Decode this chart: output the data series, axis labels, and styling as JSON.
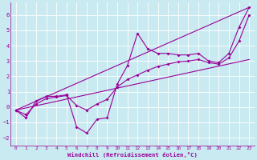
{
  "background_color": "#c8eaf0",
  "line_color": "#990099",
  "grid_color": "#ffffff",
  "xlabel": "Windchill (Refroidissement éolien,°C)",
  "xlim": [
    -0.5,
    23.5
  ],
  "ylim": [
    -2.5,
    6.8
  ],
  "yticks": [
    -2,
    -1,
    0,
    1,
    2,
    3,
    4,
    5,
    6
  ],
  "xticks": [
    0,
    1,
    2,
    3,
    4,
    5,
    6,
    7,
    8,
    9,
    10,
    11,
    12,
    13,
    14,
    15,
    16,
    17,
    18,
    19,
    20,
    21,
    22,
    23
  ],
  "series": [
    {
      "x": [
        0,
        1,
        2,
        3,
        4,
        5,
        6,
        7,
        8,
        9,
        10,
        11,
        12,
        13,
        14,
        15,
        16,
        17,
        18,
        19,
        20,
        21,
        22,
        23
      ],
      "y": [
        -0.2,
        -0.7,
        0.4,
        0.7,
        0.7,
        0.8,
        -1.3,
        -1.7,
        -0.8,
        -0.7,
        1.5,
        2.7,
        4.8,
        3.8,
        3.5,
        3.5,
        3.4,
        3.4,
        3.5,
        3.0,
        2.9,
        3.5,
        5.2,
        6.5
      ],
      "marker": true
    },
    {
      "x": [
        0,
        1,
        2,
        3,
        4,
        5,
        6,
        7,
        8,
        9,
        10,
        11,
        12,
        13,
        14,
        15,
        16,
        17,
        18,
        19,
        20,
        21,
        22,
        23
      ],
      "y": [
        -0.2,
        -0.5,
        0.2,
        0.55,
        0.65,
        0.75,
        0.1,
        -0.2,
        0.2,
        0.5,
        1.3,
        1.8,
        2.1,
        2.4,
        2.65,
        2.8,
        2.95,
        3.0,
        3.1,
        2.9,
        2.8,
        3.2,
        4.3,
        6.0
      ],
      "marker": true
    },
    {
      "x": [
        0,
        23
      ],
      "y": [
        -0.2,
        6.5
      ],
      "marker": false
    },
    {
      "x": [
        0,
        23
      ],
      "y": [
        -0.2,
        3.1
      ],
      "marker": false
    }
  ],
  "figsize": [
    3.2,
    2.0
  ],
  "dpi": 100
}
